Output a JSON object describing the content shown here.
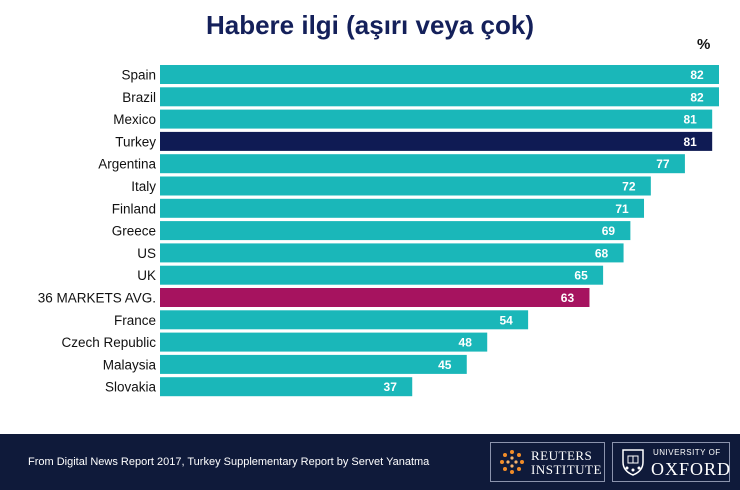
{
  "chart_data": {
    "type": "bar",
    "orientation": "horizontal",
    "title": "Habere ilgi (aşırı veya çok)",
    "unit": "%",
    "xlim": [
      0,
      82
    ],
    "categories": [
      "Spain",
      "Brazil",
      "Mexico",
      "Turkey",
      "Argentina",
      "Italy",
      "Finland",
      "Greece",
      "US",
      "UK",
      "36 MARKETS AVG.",
      "France",
      "Czech Republic",
      "Malaysia",
      "Slovakia"
    ],
    "values": [
      82,
      82,
      81,
      81,
      77,
      72,
      71,
      69,
      68,
      65,
      63,
      54,
      48,
      45,
      37
    ],
    "colors": {
      "default": "#1ab7b9",
      "highlight": "#0f1b54",
      "average": "#a6135f"
    },
    "highlight_categories": [
      "Turkey"
    ],
    "average_categories": [
      "36 MARKETS AVG."
    ],
    "data_labels_shown": true,
    "grid": false
  },
  "footer": {
    "source": "From Digital News Report 2017, Turkey Supplementary Report by Servet Yanatma",
    "logos": {
      "reuters": "REUTERS INSTITUTE",
      "reuters_line1": "REUTERS",
      "reuters_line2": "INSTITUTE",
      "oxford_small": "UNIVERSITY OF",
      "oxford_big": "OXFORD"
    }
  }
}
